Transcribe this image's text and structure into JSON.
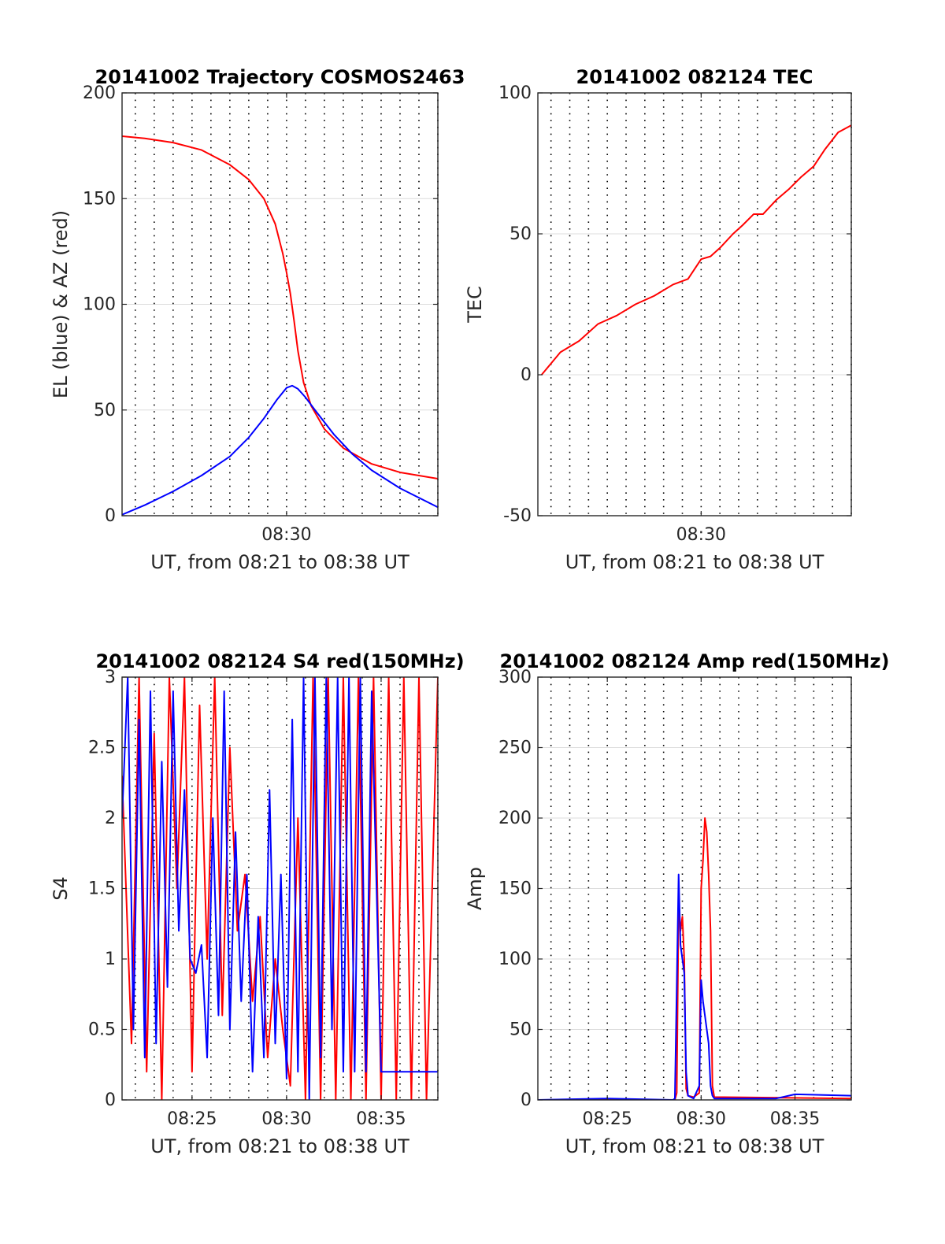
{
  "chart_data": [
    {
      "type": "line",
      "title": "20141002 Trajectory COSMOS2463",
      "xlabel": "UT, from 08:21 to 08:38 UT",
      "ylabel": "EL (blue) & AZ (red)",
      "xlim_minutes": [
        21.3,
        38.0
      ],
      "ylim": [
        0,
        200
      ],
      "yticks": [
        0,
        50,
        100,
        150,
        200
      ],
      "ytick_labels": [
        "0",
        "50",
        "100",
        "150",
        "200"
      ],
      "xticks": [
        30
      ],
      "xtick_labels": [
        "08:30"
      ],
      "grid": true,
      "series": [
        {
          "color": "#ff0000",
          "x": [
            21.3,
            22.5,
            24.0,
            25.5,
            27.0,
            28.0,
            28.8,
            29.4,
            29.8,
            30.0,
            30.2,
            30.4,
            30.6,
            30.9,
            31.3,
            32.0,
            33.0,
            34.5,
            36.0,
            38.0
          ],
          "values": [
            179.5,
            178.5,
            176.5,
            173,
            166,
            159,
            150,
            138,
            124,
            115,
            105,
            92,
            78,
            63,
            52,
            41,
            32,
            24.5,
            20.5,
            17.5
          ]
        },
        {
          "color": "#0000ff",
          "x": [
            21.3,
            22.5,
            24.0,
            25.5,
            27.0,
            28.0,
            28.8,
            29.5,
            30.0,
            30.3,
            30.6,
            31.0,
            31.5,
            32.5,
            33.5,
            34.5,
            36.0,
            38.0
          ],
          "values": [
            0.5,
            5,
            11.5,
            19,
            28,
            37,
            46,
            55,
            60.5,
            61.5,
            60,
            56,
            50,
            38.5,
            29,
            21.5,
            13,
            4
          ]
        }
      ]
    },
    {
      "type": "line",
      "title": "20141002 082124 TEC",
      "xlabel": "UT, from 08:21 to 08:38 UT",
      "ylabel": "TEC",
      "xlim_minutes": [
        21.3,
        38.0
      ],
      "ylim": [
        -50,
        100
      ],
      "yticks": [
        -50,
        0,
        50,
        100
      ],
      "ytick_labels": [
        "-50",
        "0",
        "50",
        "100"
      ],
      "xticks": [
        30
      ],
      "xtick_labels": [
        "08:30"
      ],
      "grid": true,
      "series": [
        {
          "color": "#ff0000",
          "x": [
            21.5,
            22.5,
            23.5,
            24.5,
            25.5,
            26.5,
            27.5,
            28.5,
            29.3,
            30.0,
            30.5,
            31.0,
            31.7,
            32.2,
            32.8,
            33.3,
            34.0,
            34.7,
            35.3,
            36.0,
            36.6,
            37.3,
            38.0
          ],
          "values": [
            0,
            8,
            12,
            18,
            21,
            25,
            28,
            32,
            34,
            41,
            42,
            45,
            50,
            53,
            57,
            57,
            62,
            66,
            70,
            74,
            80,
            86,
            88.5
          ]
        }
      ]
    },
    {
      "type": "line",
      "title": "20141002 082124 S4 red(150MHz)",
      "xlabel": "UT, from 08:21 to 08:38 UT",
      "ylabel": "S4",
      "xlim_minutes": [
        21.3,
        38.0
      ],
      "ylim": [
        0,
        3
      ],
      "yticks": [
        0,
        0.5,
        1,
        1.5,
        2,
        2.5,
        3
      ],
      "ytick_labels": [
        "0",
        "0.5",
        "1",
        "1.5",
        "2",
        "2.5",
        "3"
      ],
      "xticks": [
        25,
        30,
        35
      ],
      "xtick_labels": [
        "08:25",
        "08:30",
        "08:35"
      ],
      "grid": true,
      "series": [
        {
          "color": "#ff0000",
          "x": [
            21.3,
            21.8,
            22.2,
            22.6,
            23.0,
            23.4,
            23.8,
            24.2,
            24.6,
            25.0,
            25.4,
            25.8,
            26.2,
            26.6,
            27.0,
            27.4,
            27.8,
            28.2,
            28.6,
            29.0,
            29.4,
            29.8,
            30.2,
            30.6,
            31.0,
            31.4,
            31.8,
            32.2,
            32.6,
            33.0,
            33.4,
            33.8,
            34.2,
            34.6,
            35.0,
            35.4,
            35.8,
            36.2,
            36.6,
            37.0,
            37.4,
            38.0
          ],
          "values": [
            2.3,
            0.4,
            3.0,
            0.2,
            2.6,
            0.0,
            3.0,
            1.5,
            3.0,
            0.2,
            2.8,
            1.0,
            3.0,
            0.6,
            2.5,
            1.2,
            1.6,
            0.7,
            1.3,
            0.3,
            1.0,
            0.5,
            0.1,
            2.0,
            0.0,
            3.0,
            0.0,
            3.0,
            0.0,
            3.0,
            0.0,
            3.0,
            0.0,
            3.0,
            0.0,
            3.0,
            0.0,
            3.0,
            0.0,
            3.0,
            0.0,
            3.0
          ]
        },
        {
          "color": "#0000ff",
          "x": [
            21.3,
            21.6,
            21.9,
            22.2,
            22.5,
            22.8,
            23.1,
            23.4,
            23.7,
            24.0,
            24.3,
            24.6,
            24.9,
            25.2,
            25.5,
            25.8,
            26.1,
            26.4,
            26.7,
            27.0,
            27.3,
            27.6,
            27.9,
            28.2,
            28.5,
            28.8,
            29.1,
            29.4,
            29.7,
            30.0,
            30.3,
            30.6,
            30.9,
            31.2,
            31.5,
            31.8,
            32.1,
            32.4,
            32.7,
            33.0,
            33.3,
            33.6,
            33.9,
            34.2,
            34.5,
            35.0,
            35.5,
            36.0,
            36.5,
            37.0,
            37.5,
            38.0
          ],
          "values": [
            2.0,
            3.0,
            0.5,
            2.7,
            0.3,
            2.9,
            0.4,
            2.4,
            0.8,
            2.9,
            1.2,
            2.2,
            1.0,
            0.9,
            1.1,
            0.3,
            2.0,
            0.6,
            2.9,
            0.5,
            1.9,
            0.7,
            1.6,
            0.2,
            1.3,
            0.3,
            2.2,
            0.4,
            1.6,
            0.15,
            2.7,
            0.2,
            3.0,
            0.0,
            3.0,
            0.3,
            3.0,
            0.5,
            3.0,
            0.2,
            3.0,
            0.2,
            3.0,
            0.2,
            2.9,
            0.2,
            0.2,
            0.2,
            0.2,
            0.2,
            0.2,
            0.2
          ]
        }
      ]
    },
    {
      "type": "line",
      "title": "20141002 082124 Amp red(150MHz)",
      "xlabel": "UT, from 08:21 to 08:38 UT",
      "ylabel": "Amp",
      "xlim_minutes": [
        21.3,
        38.0
      ],
      "ylim": [
        0,
        300
      ],
      "yticks": [
        0,
        50,
        100,
        150,
        200,
        250,
        300
      ],
      "ytick_labels": [
        "0",
        "50",
        "100",
        "150",
        "200",
        "250",
        "300"
      ],
      "xticks": [
        25,
        30,
        35
      ],
      "xtick_labels": [
        "08:25",
        "08:30",
        "08:35"
      ],
      "grid": true,
      "series": [
        {
          "color": "#ff0000",
          "x": [
            21.3,
            28.6,
            28.7,
            28.8,
            28.9,
            29.0,
            29.1,
            29.2,
            29.3,
            29.6,
            29.9,
            30.0,
            30.1,
            30.2,
            30.3,
            30.4,
            30.5,
            30.6,
            30.7,
            38.0
          ],
          "values": [
            0,
            0,
            5,
            140,
            120,
            130,
            100,
            8,
            3,
            2,
            5,
            150,
            170,
            200,
            190,
            160,
            120,
            10,
            2,
            1
          ]
        },
        {
          "color": "#0000ff",
          "x": [
            21.3,
            25.0,
            28.5,
            28.6,
            28.7,
            28.8,
            28.9,
            29.0,
            29.1,
            29.2,
            29.3,
            29.6,
            29.9,
            30.0,
            30.1,
            30.2,
            30.3,
            30.4,
            30.5,
            30.6,
            30.7,
            34.0,
            35.0,
            38.0
          ],
          "values": [
            0,
            1,
            0,
            1,
            80,
            160,
            110,
            100,
            90,
            20,
            3,
            1,
            10,
            85,
            70,
            60,
            50,
            40,
            10,
            3,
            1,
            1,
            4,
            3
          ]
        }
      ]
    }
  ]
}
